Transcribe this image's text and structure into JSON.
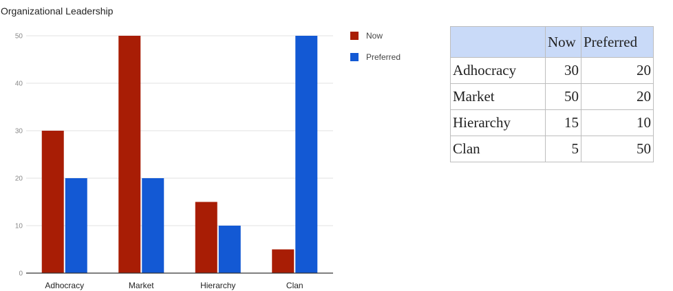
{
  "colors": {
    "now": "#a81d05",
    "preferred": "#1359d4",
    "grid": "#e0e0e0",
    "axis": "#333333",
    "header_bg": "#c9daf8"
  },
  "chart_data": {
    "type": "bar",
    "title": "Organizational Leadership",
    "categories": [
      "Adhocracy",
      "Market",
      "Hierarchy",
      "Clan"
    ],
    "series": [
      {
        "name": "Now",
        "values": [
          30,
          50,
          15,
          5
        ]
      },
      {
        "name": "Preferred",
        "values": [
          20,
          20,
          10,
          50
        ]
      }
    ],
    "ylim": [
      0,
      50
    ],
    "yticks": [
      0,
      10,
      20,
      30,
      40,
      50
    ],
    "xlabel": "",
    "ylabel": "",
    "grid": true,
    "legend": "right"
  },
  "table": {
    "headers": [
      "",
      "Now",
      "Preferred"
    ],
    "rows": [
      [
        "Adhocracy",
        "30",
        "20"
      ],
      [
        "Market",
        "50",
        "20"
      ],
      [
        "Hierarchy",
        "15",
        "10"
      ],
      [
        "Clan",
        "5",
        "50"
      ]
    ]
  }
}
